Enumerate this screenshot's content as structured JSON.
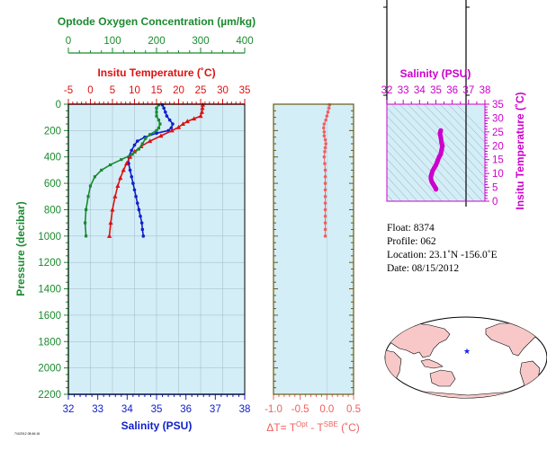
{
  "colors": {
    "oxygen": "#1a8a2e",
    "temperature": "#dd1111",
    "salinity": "#1020cc",
    "delta": "#f06060",
    "ts": "#cc00cc",
    "panel_bg": "#d4eef8",
    "delta_frame": "#6a5a10",
    "map_land": "#f8c8c8",
    "map_ocean": "#ffffff",
    "float_marker": "#1020ee"
  },
  "main_plot": {
    "oxygen_axis_title": "Optode Oxygen Concentration (µm/kg)",
    "oxygen_ticks": [
      "0",
      "100",
      "200",
      "300",
      "400"
    ],
    "temperature_axis_title": "Insitu Temperature (˚C)",
    "temperature_ticks": [
      "-5",
      "0",
      "5",
      "10",
      "15",
      "20",
      "25",
      "30",
      "35"
    ],
    "pressure_axis_title": "Pressure (decibar)",
    "pressure_ticks": [
      "0",
      "200",
      "400",
      "600",
      "800",
      "1000",
      "1200",
      "1400",
      "1600",
      "1800",
      "2000",
      "2200"
    ],
    "salinity_axis_title": "Salinity (PSU)",
    "salinity_ticks": [
      "32",
      "33",
      "34",
      "35",
      "36",
      "37",
      "38"
    ],
    "footnote": "7/4/2012 08:46:16"
  },
  "delta_plot": {
    "axis_title_prefix": "ΔT= T",
    "axis_title_sup1": "Opt",
    "axis_title_mid": " - T",
    "axis_title_sup2": "SBE",
    "axis_title_suffix": " (˚C)",
    "ticks": [
      "-1.0",
      "-0.5",
      "0.0",
      "0.5"
    ]
  },
  "ts_plot": {
    "salinity_axis_title": "Salinity (PSU)",
    "salinity_ticks": [
      "32",
      "33",
      "34",
      "35",
      "36",
      "37",
      "38"
    ],
    "temperature_axis_title": "Insitu Temperature (˚C)",
    "temperature_ticks": [
      "0",
      "5",
      "10",
      "15",
      "20",
      "25",
      "30",
      "35"
    ]
  },
  "float_info": {
    "float": "Float:  8374",
    "profile": "Profile:  062",
    "location": "Location:  23.1˚N  -156.0˚E",
    "date": "Date:  08/15/2012"
  },
  "chart_data": [
    {
      "type": "line",
      "ylabel": "Pressure (decibar)",
      "ylim": [
        2200,
        0
      ],
      "series": [
        {
          "name": "Salinity",
          "x_axis": "Salinity (PSU)",
          "xlim": [
            32,
            38
          ],
          "points": [
            [
              35.2,
              5
            ],
            [
              35.25,
              30
            ],
            [
              35.3,
              60
            ],
            [
              35.35,
              90
            ],
            [
              35.45,
              120
            ],
            [
              35.55,
              150
            ],
            [
              35.5,
              180
            ],
            [
              35.4,
              200
            ],
            [
              35.0,
              220
            ],
            [
              34.6,
              250
            ],
            [
              34.35,
              280
            ],
            [
              34.25,
              310
            ],
            [
              34.15,
              350
            ],
            [
              34.05,
              400
            ],
            [
              34.05,
              450
            ],
            [
              34.1,
              500
            ],
            [
              34.15,
              550
            ],
            [
              34.2,
              600
            ],
            [
              34.25,
              650
            ],
            [
              34.3,
              700
            ],
            [
              34.35,
              750
            ],
            [
              34.4,
              800
            ],
            [
              34.45,
              850
            ],
            [
              34.5,
              900
            ],
            [
              34.52,
              950
            ],
            [
              34.55,
              1000
            ]
          ]
        },
        {
          "name": "Insitu Temperature",
          "x_axis": "Insitu Temperature (˚C)",
          "xlim": [
            -5,
            35
          ],
          "points": [
            [
              25.5,
              5
            ],
            [
              25.4,
              30
            ],
            [
              25.3,
              60
            ],
            [
              25.0,
              90
            ],
            [
              23.5,
              110
            ],
            [
              22.0,
              130
            ],
            [
              21.0,
              150
            ],
            [
              20.0,
              175
            ],
            [
              18.5,
              200
            ],
            [
              16.0,
              240
            ],
            [
              13.5,
              280
            ],
            [
              11.5,
              320
            ],
            [
              10.0,
              360
            ],
            [
              9.0,
              400
            ],
            [
              8.2,
              450
            ],
            [
              7.5,
              500
            ],
            [
              6.8,
              560
            ],
            [
              6.2,
              620
            ],
            [
              5.6,
              700
            ],
            [
              5.0,
              800
            ],
            [
              4.6,
              900
            ],
            [
              4.3,
              1000
            ]
          ]
        },
        {
          "name": "Optode Oxygen Concentration",
          "x_axis": "Optode Oxygen Concentration (µm/kg)",
          "xlim": [
            0,
            400
          ],
          "points": [
            [
              205,
              5
            ],
            [
              200,
              30
            ],
            [
              200,
              60
            ],
            [
              200,
              90
            ],
            [
              205,
              120
            ],
            [
              208,
              150
            ],
            [
              205,
              180
            ],
            [
              200,
              200
            ],
            [
              185,
              230
            ],
            [
              175,
              260
            ],
            [
              168,
              300
            ],
            [
              160,
              340
            ],
            [
              145,
              380
            ],
            [
              120,
              420
            ],
            [
              95,
              460
            ],
            [
              75,
              500
            ],
            [
              60,
              550
            ],
            [
              50,
              620
            ],
            [
              45,
              700
            ],
            [
              40,
              800
            ],
            [
              38,
              900
            ],
            [
              40,
              1000
            ]
          ]
        }
      ]
    },
    {
      "type": "line",
      "xlabel": "ΔT= T Opt - T SBE (˚C)",
      "ylabel": "Pressure (decibar)",
      "xlim": [
        -1.0,
        0.5
      ],
      "ylim": [
        2200,
        0
      ],
      "series": [
        {
          "points": [
            [
              0.05,
              5
            ],
            [
              0.04,
              30
            ],
            [
              0.02,
              60
            ],
            [
              0.0,
              90
            ],
            [
              -0.02,
              120
            ],
            [
              -0.05,
              150
            ],
            [
              -0.06,
              180
            ],
            [
              -0.05,
              210
            ],
            [
              -0.05,
              240
            ],
            [
              -0.03,
              270
            ],
            [
              -0.02,
              300
            ],
            [
              -0.03,
              330
            ],
            [
              -0.04,
              360
            ],
            [
              -0.05,
              400
            ],
            [
              -0.04,
              450
            ],
            [
              -0.03,
              500
            ],
            [
              -0.03,
              550
            ],
            [
              -0.03,
              600
            ],
            [
              -0.03,
              650
            ],
            [
              -0.03,
              700
            ],
            [
              -0.03,
              750
            ],
            [
              -0.03,
              800
            ],
            [
              -0.03,
              850
            ],
            [
              -0.03,
              900
            ],
            [
              -0.03,
              950
            ],
            [
              -0.03,
              1000
            ]
          ]
        }
      ]
    },
    {
      "type": "scatter",
      "xlabel": "Salinity (PSU)",
      "ylabel": "Insitu Temperature (˚C)",
      "xlim": [
        32,
        38
      ],
      "ylim": [
        0,
        35
      ],
      "series": [
        {
          "points": [
            [
              35.3,
              25.5
            ],
            [
              35.25,
              24.5
            ],
            [
              35.3,
              23
            ],
            [
              35.35,
              21
            ],
            [
              35.4,
              20
            ],
            [
              35.35,
              18.5
            ],
            [
              35.3,
              17
            ],
            [
              35.2,
              16
            ],
            [
              35.1,
              14.5
            ],
            [
              35.0,
              13
            ],
            [
              34.9,
              12
            ],
            [
              34.8,
              11
            ],
            [
              34.75,
              10
            ],
            [
              34.7,
              9
            ],
            [
              34.7,
              8
            ],
            [
              34.75,
              7
            ],
            [
              34.8,
              6.5
            ],
            [
              34.85,
              6
            ],
            [
              34.9,
              5.5
            ],
            [
              34.95,
              5
            ],
            [
              35.0,
              4.6
            ],
            [
              35.0,
              4.3
            ]
          ]
        }
      ]
    }
  ]
}
